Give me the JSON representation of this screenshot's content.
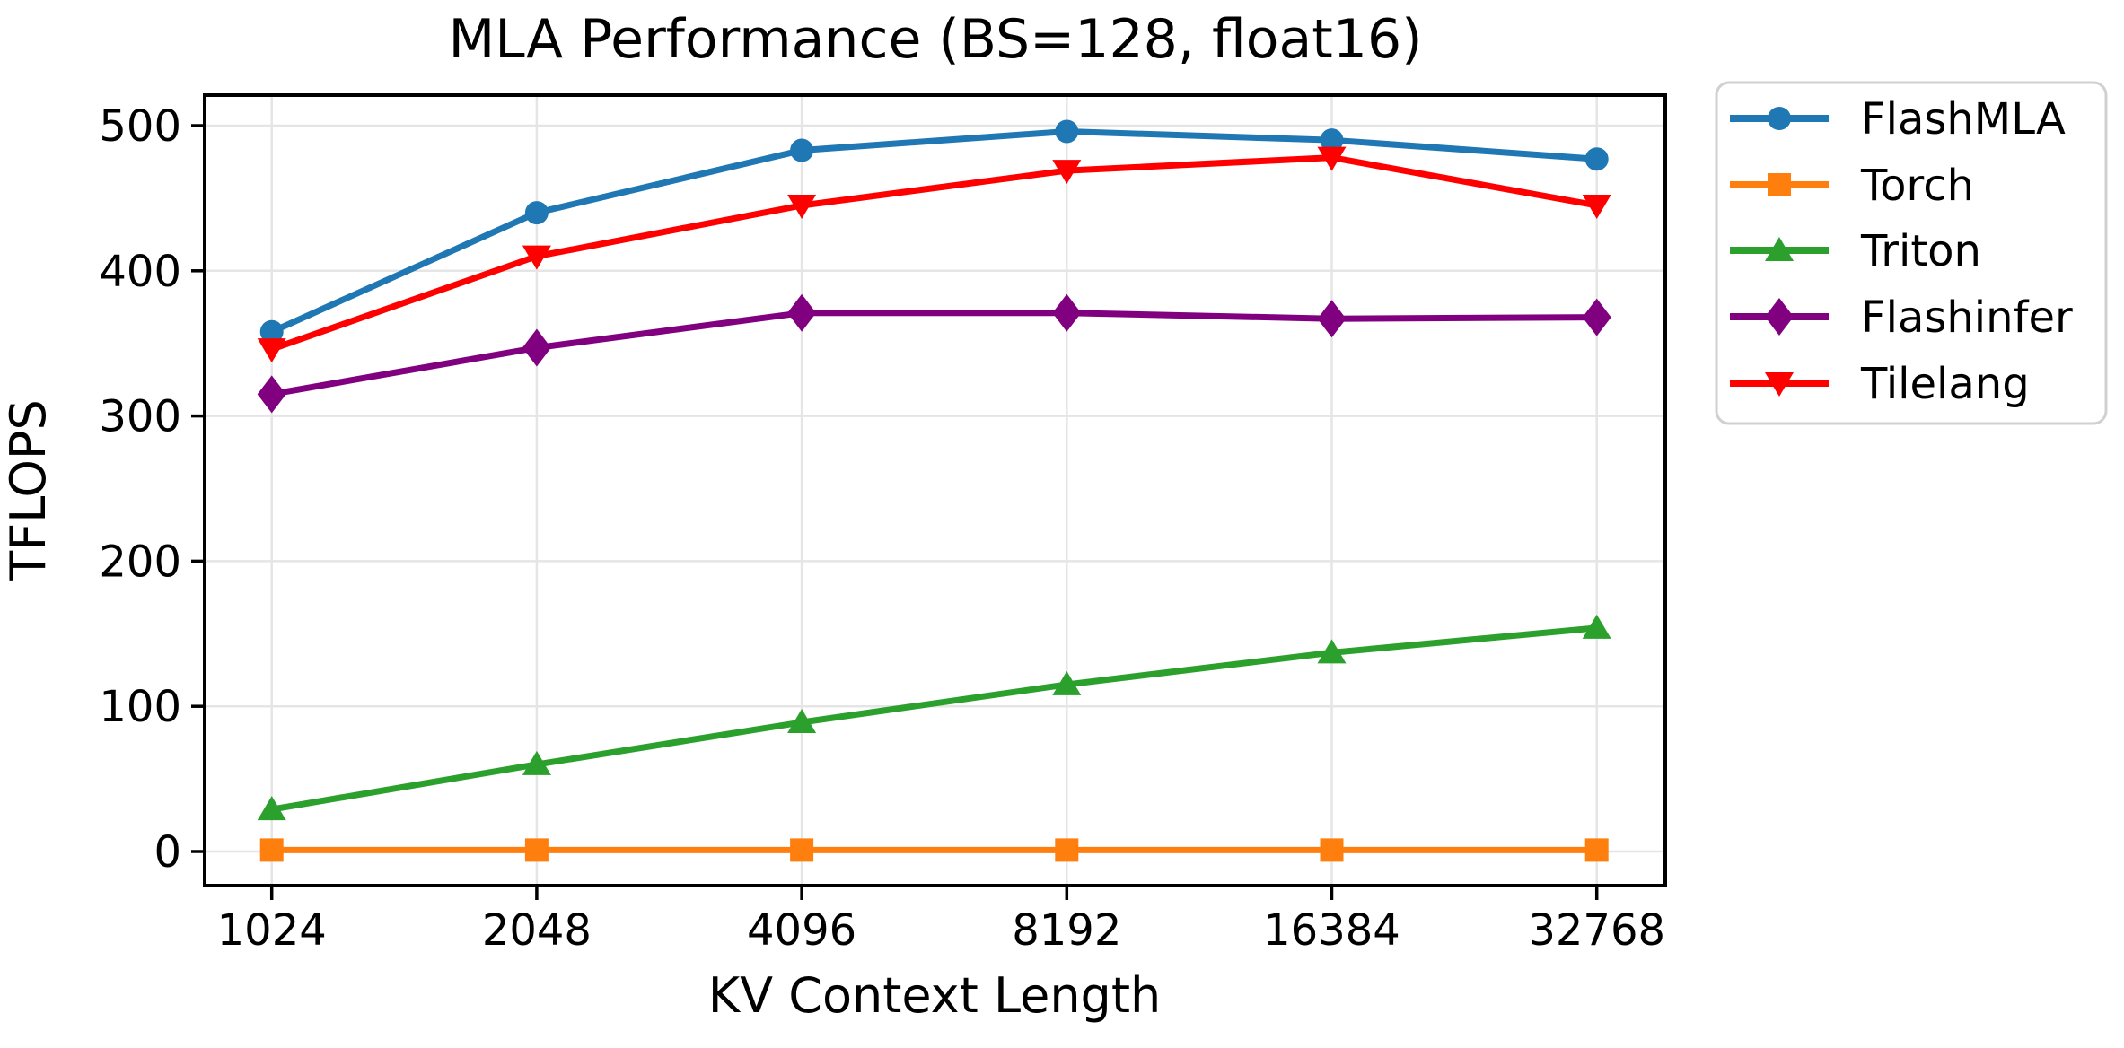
{
  "title": "MLA Performance (BS=128, float16)",
  "xlabel": "KV Context Length",
  "ylabel": "TFLOPS",
  "colors": {
    "flashmla": "#1f77b4",
    "torch": "#ff7f0e",
    "triton": "#2ca02c",
    "flashinfer": "#800080",
    "tilelang": "#ff0000",
    "grid": "#e5e5e5",
    "spine": "#000000",
    "legend_border": "#d0d0d0"
  },
  "chart_data": {
    "type": "line",
    "title": "MLA Performance (BS=128, float16)",
    "xlabel": "KV Context Length",
    "ylabel": "TFLOPS",
    "categories": [
      "1024",
      "2048",
      "4096",
      "8192",
      "16384",
      "32768"
    ],
    "y_tick_labels": [
      "0",
      "100",
      "200",
      "300",
      "400",
      "500"
    ],
    "y_ticks": [
      0,
      100,
      200,
      300,
      400,
      500
    ],
    "ylim": [
      -24,
      521
    ],
    "grid": true,
    "legend_position": "outside-right-top",
    "series": [
      {
        "name": "FlashMLA",
        "color": "#1f77b4",
        "marker": "circle",
        "values": [
          358,
          440,
          483,
          496,
          490,
          477
        ]
      },
      {
        "name": "Torch",
        "color": "#ff7f0e",
        "marker": "square",
        "values": [
          1,
          1,
          1,
          1,
          1,
          1
        ]
      },
      {
        "name": "Triton",
        "color": "#2ca02c",
        "marker": "triangle-up",
        "values": [
          29,
          60,
          89,
          115,
          137,
          154
        ]
      },
      {
        "name": "Flashinfer",
        "color": "#800080",
        "marker": "diamond",
        "values": [
          315,
          347,
          371,
          371,
          367,
          368
        ]
      },
      {
        "name": "Tilelang",
        "color": "#ff0000",
        "marker": "triangle-down",
        "values": [
          346,
          410,
          445,
          469,
          478,
          445
        ]
      }
    ]
  }
}
